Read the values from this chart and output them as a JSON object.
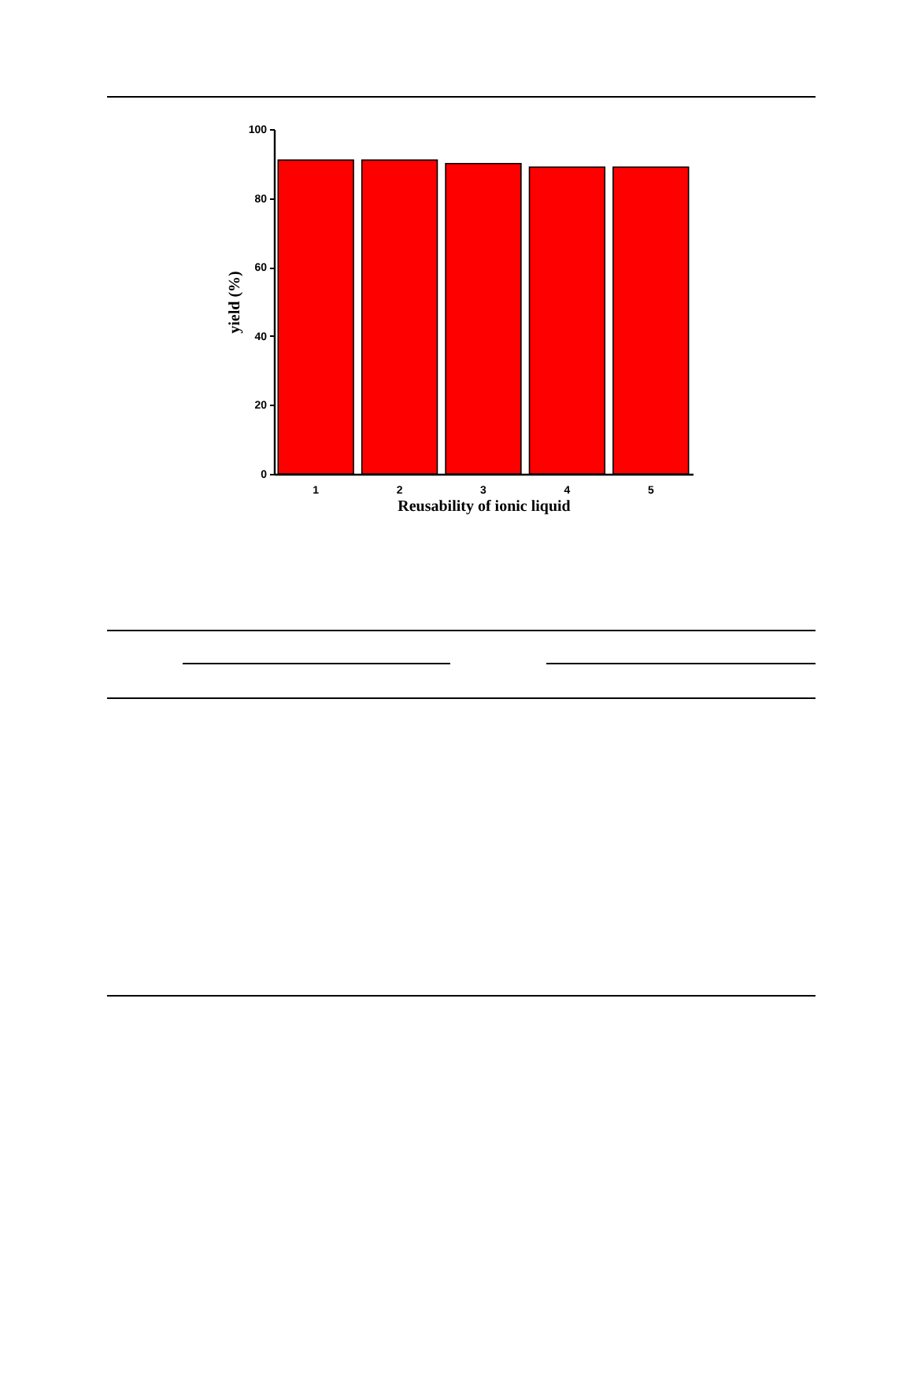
{
  "chart_data": {
    "type": "bar",
    "xlabel": "Reusability of ionic liquid",
    "ylabel": "yield (%)",
    "categories": [
      "1",
      "2",
      "3",
      "4",
      "5"
    ],
    "values": [
      91,
      91,
      90,
      89,
      89
    ],
    "color": "#ff0000",
    "ylim": [
      0,
      100
    ],
    "yticks": [
      0,
      20,
      40,
      60,
      80,
      100
    ],
    "grid": false
  }
}
